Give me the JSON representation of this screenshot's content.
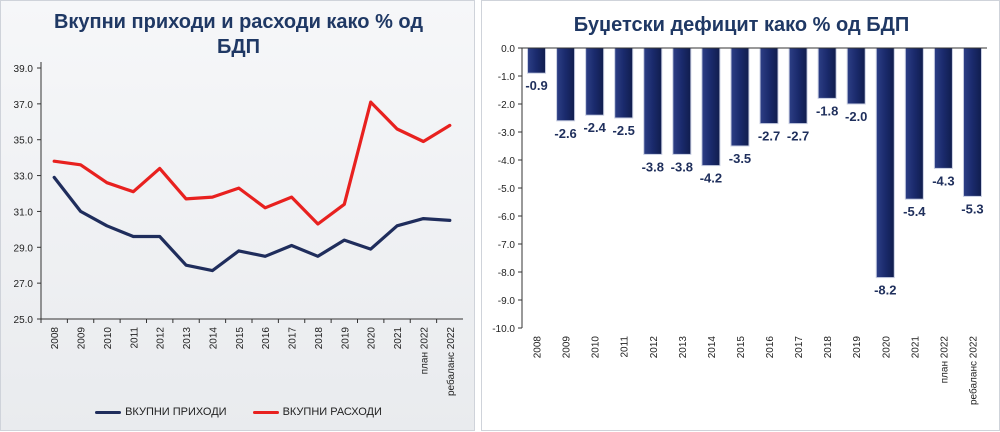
{
  "charts": {
    "left": {
      "title_line1": "Вкупни приходи и расходи како % од",
      "title_line2": "БДП",
      "legend": {
        "revenue": "ВКУПНИ ПРИХОДИ",
        "expenditure": "ВКУПНИ РАСХОДИ"
      },
      "colors": {
        "revenue": "#1f2d5c",
        "expenditure": "#e8211f",
        "axis": "#333333"
      }
    },
    "right": {
      "title": "Буџетски дефицит како % од БДП",
      "colors": {
        "bar": "#1a2a6c",
        "bar_edge": "#c9cfe3"
      }
    }
  },
  "chart_data": [
    {
      "type": "line",
      "title": "Вкупни приходи и расходи како % од БДП",
      "categories": [
        "2008",
        "2009",
        "2010",
        "2011",
        "2012",
        "2013",
        "2014",
        "2015",
        "2016",
        "2017",
        "2018",
        "2019",
        "2020",
        "2021",
        "план 2022",
        "ребаланс 2022"
      ],
      "series": [
        {
          "name": "ВКУПНИ ПРИХОДИ",
          "values": [
            32.9,
            31.0,
            30.2,
            29.6,
            29.6,
            28.0,
            27.7,
            28.8,
            28.5,
            29.1,
            28.5,
            29.4,
            28.9,
            30.2,
            30.6,
            30.5
          ]
        },
        {
          "name": "ВКУПНИ РАСХОДИ",
          "values": [
            33.8,
            33.6,
            32.6,
            32.1,
            33.4,
            31.7,
            31.8,
            32.3,
            31.2,
            31.8,
            30.3,
            31.4,
            37.1,
            35.6,
            34.9,
            35.8
          ]
        }
      ],
      "yticks": [
        "39.0",
        "37.0",
        "35.0",
        "33.0",
        "31.0",
        "29.0",
        "27.0",
        "25.0"
      ],
      "ylim": [
        25,
        39
      ],
      "legend": "bottom",
      "xlabel": "",
      "ylabel": ""
    },
    {
      "type": "bar",
      "title": "Буџетски дефицит како % од БДП",
      "categories": [
        "2008",
        "2009",
        "2010",
        "2011",
        "2012",
        "2013",
        "2014",
        "2015",
        "2016",
        "2017",
        "2018",
        "2019",
        "2020",
        "2021",
        "план 2022",
        "ребаланс 2022"
      ],
      "values": [
        -0.9,
        -2.6,
        -2.4,
        -2.5,
        -3.8,
        -3.8,
        -4.2,
        -3.5,
        -2.7,
        -2.7,
        -1.8,
        -2.0,
        -8.2,
        -5.4,
        -4.3,
        -5.3
      ],
      "labels": [
        "-0.9",
        "-2.6",
        "-2.4",
        "-2.5",
        "-3.8",
        "-3.8",
        "-4.2",
        "-3.5",
        "-2.7",
        "-2.7",
        "-1.8",
        "-2.0",
        "-8.2",
        "-5.4",
        "-4.3",
        "-5.3"
      ],
      "yticks": [
        "0.0",
        "-1.0",
        "-2.0",
        "-3.0",
        "-4.0",
        "-5.0",
        "-6.0",
        "-7.0",
        "-8.0",
        "-9.0",
        "-10.0"
      ],
      "ylim": [
        -10,
        0
      ],
      "xlabel": "",
      "ylabel": ""
    }
  ]
}
